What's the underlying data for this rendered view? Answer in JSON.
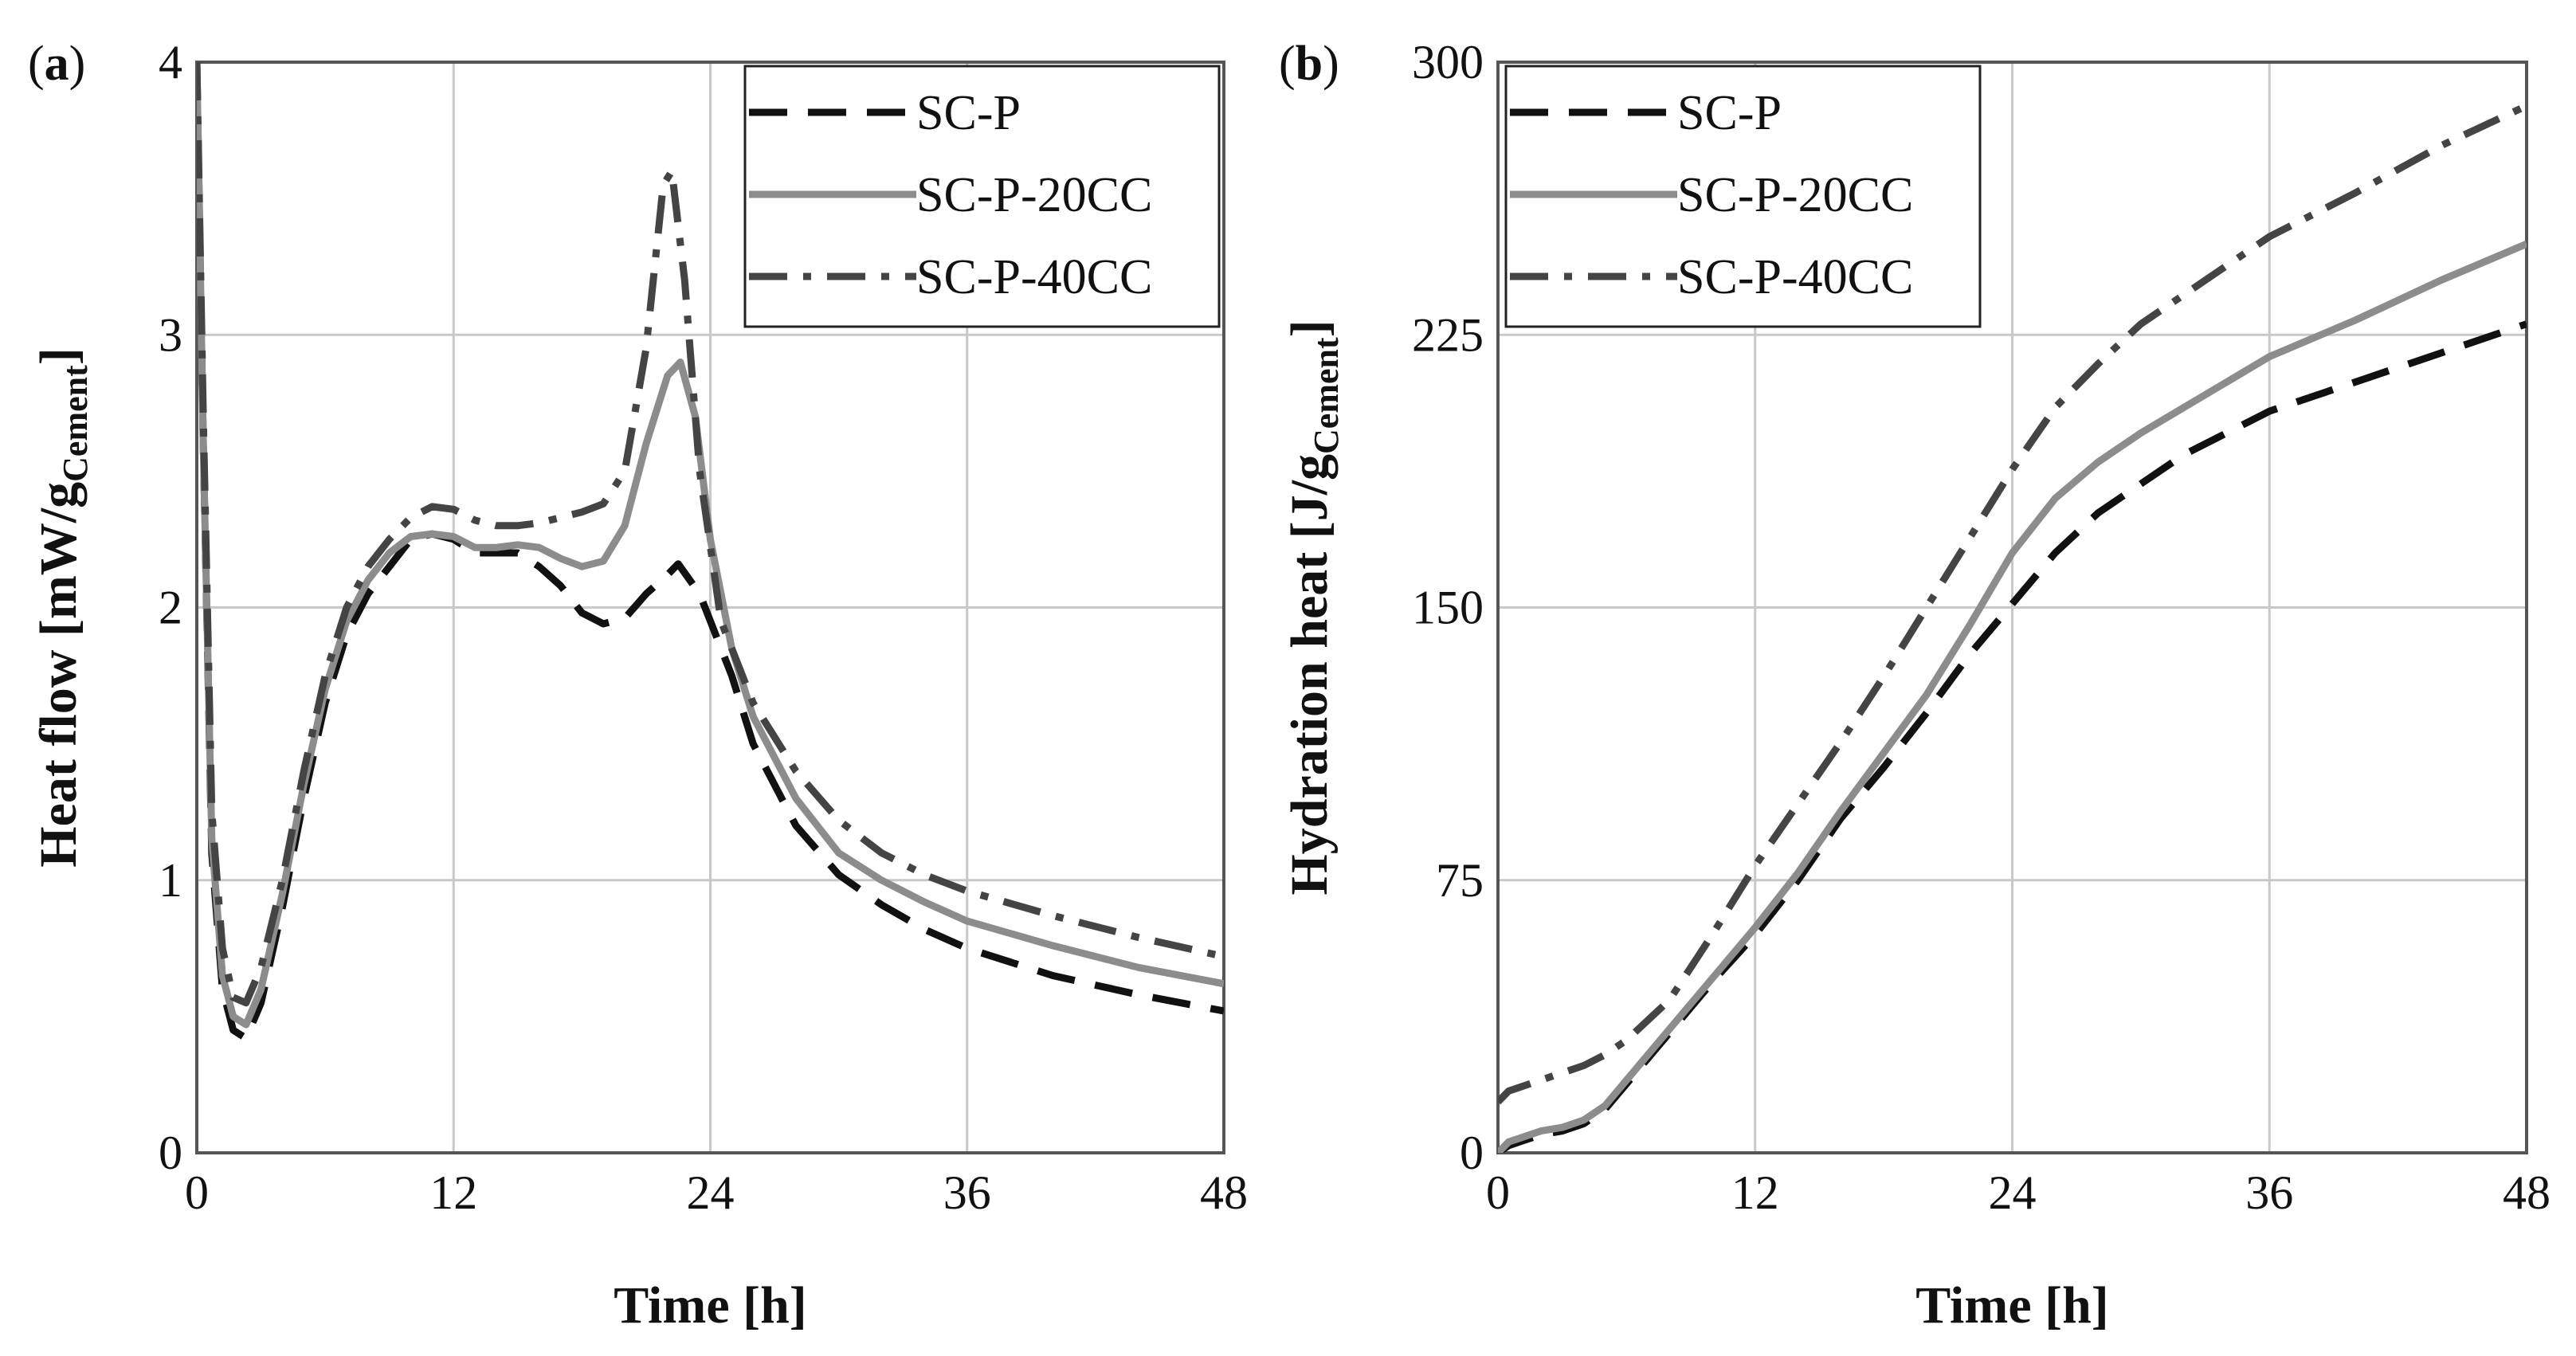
{
  "chart_data": [
    {
      "type": "line",
      "panel_label": "a",
      "xlabel": "Time [h]",
      "ylabel": "Heat flow [mW/g",
      "ylabel_sub": "Cement",
      "ylabel_close": "]",
      "xlim": [
        0,
        48
      ],
      "ylim": [
        0,
        4
      ],
      "xticks": [
        "0",
        "12",
        "24",
        "36",
        "48"
      ],
      "yticks": [
        "0",
        "1",
        "2",
        "3",
        "4"
      ],
      "legend": [
        "SC-P",
        "SC-P-20CC",
        "SC-P-40CC"
      ],
      "series": [
        {
          "name": "SC-P",
          "style": "dashed",
          "color": "#111111",
          "points": [
            [
              0,
              4.0
            ],
            [
              0.3,
              2.6
            ],
            [
              0.7,
              1.1
            ],
            [
              1.2,
              0.6
            ],
            [
              1.7,
              0.45
            ],
            [
              2.3,
              0.42
            ],
            [
              3,
              0.55
            ],
            [
              4,
              0.9
            ],
            [
              5,
              1.3
            ],
            [
              6,
              1.65
            ],
            [
              7,
              1.9
            ],
            [
              8,
              2.05
            ],
            [
              9,
              2.15
            ],
            [
              10,
              2.25
            ],
            [
              11,
              2.27
            ],
            [
              12,
              2.25
            ],
            [
              13,
              2.2
            ],
            [
              14,
              2.2
            ],
            [
              15,
              2.2
            ],
            [
              16,
              2.15
            ],
            [
              17,
              2.08
            ],
            [
              18,
              1.98
            ],
            [
              19,
              1.94
            ],
            [
              20,
              1.96
            ],
            [
              21,
              2.05
            ],
            [
              22,
              2.12
            ],
            [
              22.5,
              2.16
            ],
            [
              23.5,
              2.05
            ],
            [
              25,
              1.75
            ],
            [
              26,
              1.5
            ],
            [
              28,
              1.2
            ],
            [
              30,
              1.02
            ],
            [
              32,
              0.91
            ],
            [
              34,
              0.82
            ],
            [
              36,
              0.75
            ],
            [
              40,
              0.65
            ],
            [
              44,
              0.58
            ],
            [
              48,
              0.52
            ]
          ]
        },
        {
          "name": "SC-P-20CC",
          "style": "solid",
          "color": "#8c8c8c",
          "points": [
            [
              0,
              4.0
            ],
            [
              0.3,
              2.6
            ],
            [
              0.7,
              1.15
            ],
            [
              1.2,
              0.65
            ],
            [
              1.7,
              0.5
            ],
            [
              2.3,
              0.47
            ],
            [
              3,
              0.6
            ],
            [
              4,
              0.95
            ],
            [
              5,
              1.35
            ],
            [
              6,
              1.7
            ],
            [
              7,
              1.95
            ],
            [
              8,
              2.1
            ],
            [
              9,
              2.2
            ],
            [
              10,
              2.26
            ],
            [
              11,
              2.27
            ],
            [
              12,
              2.26
            ],
            [
              13,
              2.22
            ],
            [
              14,
              2.22
            ],
            [
              15,
              2.23
            ],
            [
              16,
              2.22
            ],
            [
              17,
              2.18
            ],
            [
              18,
              2.15
            ],
            [
              19,
              2.17
            ],
            [
              20,
              2.3
            ],
            [
              21,
              2.6
            ],
            [
              22,
              2.85
            ],
            [
              22.6,
              2.9
            ],
            [
              23.3,
              2.7
            ],
            [
              24,
              2.25
            ],
            [
              25,
              1.85
            ],
            [
              26,
              1.6
            ],
            [
              28,
              1.3
            ],
            [
              30,
              1.1
            ],
            [
              32,
              1.0
            ],
            [
              34,
              0.92
            ],
            [
              36,
              0.85
            ],
            [
              40,
              0.76
            ],
            [
              44,
              0.68
            ],
            [
              48,
              0.62
            ]
          ]
        },
        {
          "name": "SC-P-40CC",
          "style": "dashdot",
          "color": "#444444",
          "points": [
            [
              0,
              4.0
            ],
            [
              0.3,
              2.7
            ],
            [
              0.7,
              1.25
            ],
            [
              1.2,
              0.75
            ],
            [
              1.7,
              0.57
            ],
            [
              2.3,
              0.55
            ],
            [
              3,
              0.68
            ],
            [
              4,
              1.0
            ],
            [
              5,
              1.4
            ],
            [
              6,
              1.75
            ],
            [
              7,
              2.0
            ],
            [
              8,
              2.15
            ],
            [
              9,
              2.25
            ],
            [
              10,
              2.33
            ],
            [
              11,
              2.37
            ],
            [
              12,
              2.36
            ],
            [
              13,
              2.32
            ],
            [
              14,
              2.3
            ],
            [
              15,
              2.3
            ],
            [
              16,
              2.31
            ],
            [
              17,
              2.33
            ],
            [
              18,
              2.35
            ],
            [
              19,
              2.38
            ],
            [
              20,
              2.5
            ],
            [
              21,
              2.95
            ],
            [
              21.8,
              3.55
            ],
            [
              22.2,
              3.6
            ],
            [
              22.8,
              3.2
            ],
            [
              23.5,
              2.5
            ],
            [
              24.5,
              1.95
            ],
            [
              26,
              1.65
            ],
            [
              28,
              1.4
            ],
            [
              30,
              1.22
            ],
            [
              32,
              1.1
            ],
            [
              34,
              1.02
            ],
            [
              36,
              0.96
            ],
            [
              40,
              0.87
            ],
            [
              44,
              0.79
            ],
            [
              48,
              0.72
            ]
          ]
        }
      ]
    },
    {
      "type": "line",
      "panel_label": "b",
      "xlabel": "Time [h]",
      "ylabel": "Hydration heat [J/g",
      "ylabel_sub": "Cement",
      "ylabel_close": "]",
      "xlim": [
        0,
        48
      ],
      "ylim": [
        0,
        300
      ],
      "xticks": [
        "0",
        "12",
        "24",
        "36",
        "48"
      ],
      "yticks": [
        "0",
        "75",
        "150",
        "225",
        "300"
      ],
      "legend": [
        "SC-P",
        "SC-P-20CC",
        "SC-P-40CC"
      ],
      "series": [
        {
          "name": "SC-P",
          "style": "dashed",
          "color": "#111111",
          "points": [
            [
              0,
              0
            ],
            [
              0.5,
              2
            ],
            [
              1,
              3
            ],
            [
              2,
              5
            ],
            [
              3,
              6
            ],
            [
              4,
              8
            ],
            [
              5,
              12
            ],
            [
              6,
              19
            ],
            [
              8,
              33
            ],
            [
              10,
              47
            ],
            [
              12,
              60
            ],
            [
              14,
              75
            ],
            [
              16,
              92
            ],
            [
              18,
              106
            ],
            [
              20,
              121
            ],
            [
              22,
              137
            ],
            [
              24,
              151
            ],
            [
              26,
              165
            ],
            [
              28,
              176
            ],
            [
              30,
              184
            ],
            [
              32,
              192
            ],
            [
              34,
              198
            ],
            [
              36,
              204
            ],
            [
              40,
              212
            ],
            [
              44,
              220
            ],
            [
              48,
              228
            ]
          ]
        },
        {
          "name": "SC-P-20CC",
          "style": "solid",
          "color": "#8c8c8c",
          "points": [
            [
              0,
              0
            ],
            [
              0.5,
              3
            ],
            [
              1,
              4
            ],
            [
              2,
              6
            ],
            [
              3,
              7
            ],
            [
              4,
              9
            ],
            [
              5,
              13
            ],
            [
              6,
              20
            ],
            [
              8,
              34
            ],
            [
              10,
              48
            ],
            [
              12,
              62
            ],
            [
              14,
              77
            ],
            [
              16,
              94
            ],
            [
              18,
              110
            ],
            [
              20,
              126
            ],
            [
              22,
              145
            ],
            [
              24,
              165
            ],
            [
              26,
              180
            ],
            [
              28,
              190
            ],
            [
              30,
              198
            ],
            [
              32,
              205
            ],
            [
              34,
              212
            ],
            [
              36,
              219
            ],
            [
              40,
              229
            ],
            [
              44,
              240
            ],
            [
              48,
              250
            ]
          ]
        },
        {
          "name": "SC-P-40CC",
          "style": "dashdot",
          "color": "#444444",
          "points": [
            [
              0,
              14
            ],
            [
              0.5,
              17
            ],
            [
              1,
              18
            ],
            [
              2,
              20
            ],
            [
              3,
              22
            ],
            [
              4,
              24
            ],
            [
              5,
              27
            ],
            [
              6,
              31
            ],
            [
              8,
              42
            ],
            [
              10,
              60
            ],
            [
              12,
              79
            ],
            [
              14,
              96
            ],
            [
              16,
              113
            ],
            [
              18,
              131
            ],
            [
              20,
              150
            ],
            [
              22,
              169
            ],
            [
              24,
              188
            ],
            [
              26,
              205
            ],
            [
              28,
              217
            ],
            [
              30,
              228
            ],
            [
              32,
              236
            ],
            [
              34,
              244
            ],
            [
              36,
              252
            ],
            [
              40,
              264
            ],
            [
              44,
              277
            ],
            [
              48,
              288
            ]
          ]
        }
      ]
    }
  ]
}
